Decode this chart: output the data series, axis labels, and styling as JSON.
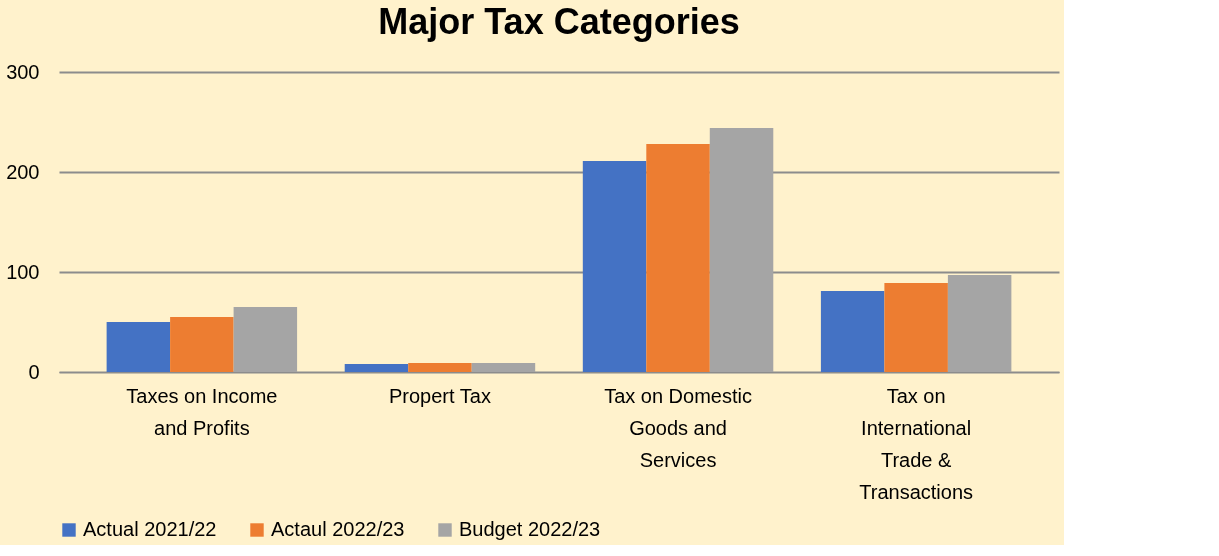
{
  "chart_data": {
    "type": "bar",
    "title": "Major Tax Categories",
    "categories": [
      "Taxes on Income and Profits",
      "Propert Tax",
      "Tax on Domestic Goods and Services",
      "Tax on International Trade & Transactions"
    ],
    "series": [
      {
        "name": "Actual 2021/22",
        "color": "#4472c4",
        "values": [
          50,
          8,
          211,
          81
        ]
      },
      {
        "name": "Actaul 2022/23",
        "color": "#ed7d31",
        "values": [
          55,
          9,
          228,
          89
        ]
      },
      {
        "name": "Budget 2022/23",
        "color": "#a5a5a5",
        "values": [
          65,
          9,
          244,
          97
        ]
      }
    ],
    "ylim": [
      0,
      300
    ],
    "yticks": [
      0,
      100,
      200,
      300
    ],
    "grid": "y",
    "legend": "bottom"
  }
}
